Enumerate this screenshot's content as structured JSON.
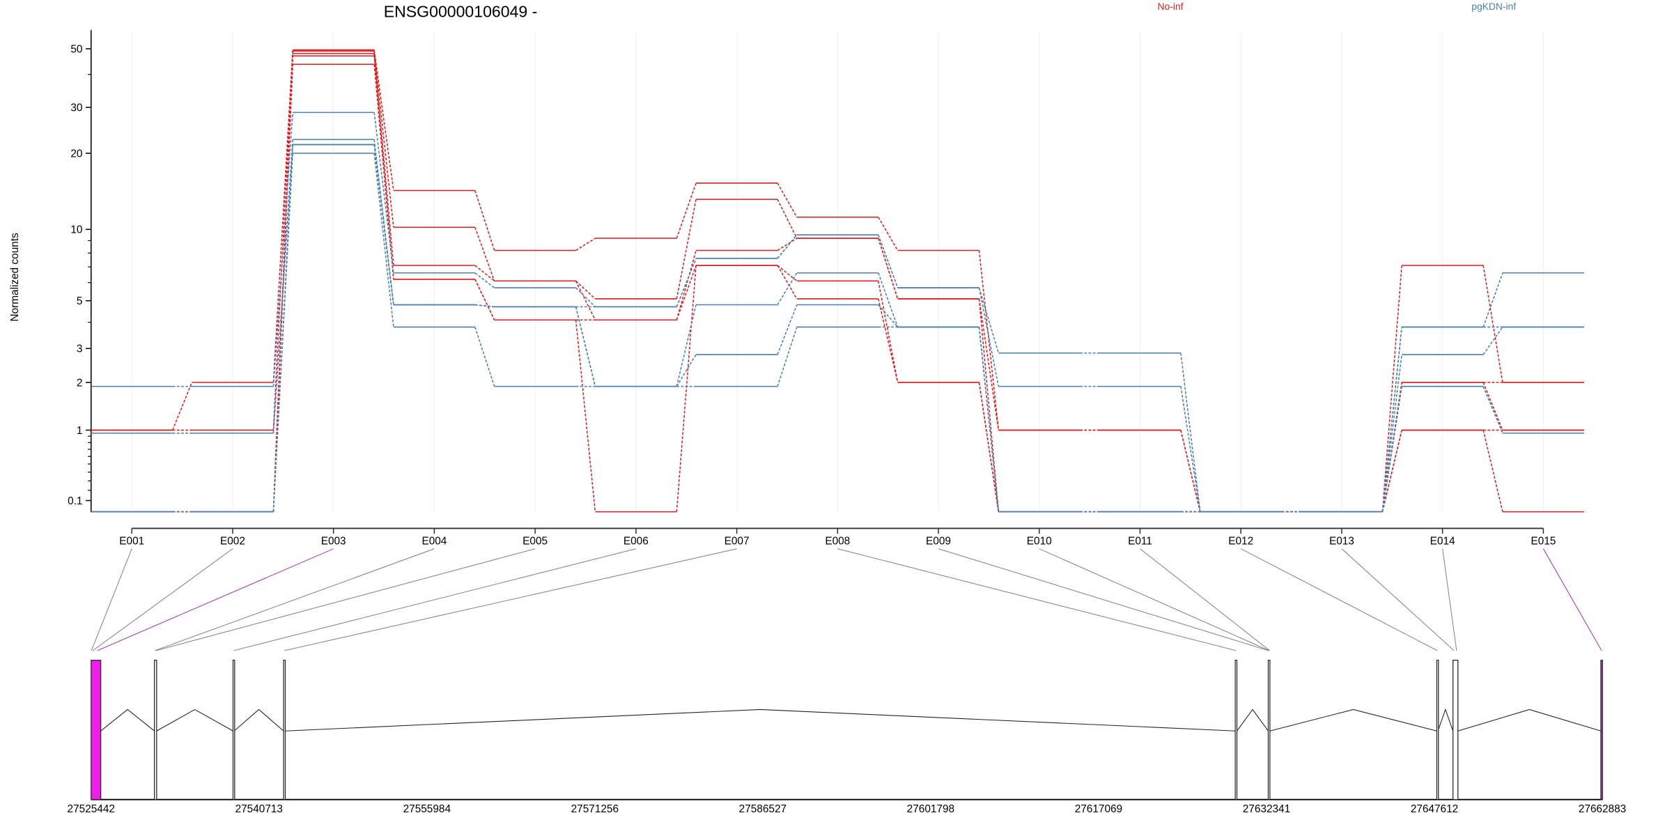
{
  "chart_data": {
    "type": "line",
    "title": "ENSG00000106049 -",
    "ylabel": "Normalized counts",
    "xlabel": "",
    "y_scale": "log10(count+1)",
    "ylim": [
      0,
      55
    ],
    "y_ticks": [
      0.1,
      1,
      2,
      3,
      5,
      10,
      20,
      30,
      50
    ],
    "y_tick_labels": [
      "0.1",
      "1",
      "2",
      "3",
      "5",
      "10",
      "20",
      "30",
      "50"
    ],
    "y_minor_ticks": [
      0.2,
      0.3,
      0.4,
      0.5,
      0.6,
      0.7,
      0.8,
      0.9,
      4,
      6,
      7,
      8,
      9,
      40
    ],
    "categories": [
      "E001",
      "E002",
      "E003",
      "E004",
      "E005",
      "E006",
      "E007",
      "E008",
      "E009",
      "E010",
      "E011",
      "E012",
      "E013",
      "E014",
      "E015"
    ],
    "grid": "vertical at exons",
    "legend": {
      "placement": "top",
      "entries": [
        {
          "name": "No-inf",
          "color": "#E41A1C"
        },
        {
          "name": "pgKDN-inf",
          "color": "#4A7FB5"
        }
      ]
    },
    "groups": [
      {
        "name": "No-inf",
        "color": "#E41A1C",
        "samples": [
          [
            1,
            2,
            49.5,
            14.3,
            8.2,
            9.2,
            15.3,
            11.2,
            8.2,
            1,
            1,
            0,
            0,
            7.1,
            2
          ],
          [
            1,
            1,
            49,
            10.2,
            6.1,
            5.1,
            13.2,
            9.2,
            5.1,
            1,
            1,
            0,
            0,
            2,
            2
          ],
          [
            0,
            0,
            48,
            7.1,
            6.1,
            4.1,
            8.2,
            9.2,
            5.1,
            0,
            0,
            0,
            0,
            2,
            1
          ],
          [
            0,
            0,
            47,
            6.2,
            4.1,
            4.1,
            7.1,
            6.1,
            2,
            0,
            0,
            0,
            0,
            1,
            1
          ],
          [
            0,
            0,
            43.7,
            6.2,
            4.1,
            0,
            7.1,
            5.1,
            2,
            0,
            0,
            0,
            0,
            1,
            0
          ]
        ]
      },
      {
        "name": "pgKDN-inf",
        "color": "#4A7FB5",
        "samples": [
          [
            1.9,
            1.9,
            28.7,
            6.6,
            5.7,
            4.7,
            7.6,
            9.5,
            5.7,
            2.85,
            2.85,
            0,
            0,
            3.8,
            6.6
          ],
          [
            0.95,
            0.95,
            22.6,
            4.8,
            4.7,
            4.7,
            7.6,
            9.5,
            5.7,
            1.9,
            1.9,
            0,
            0,
            3.8,
            3.8
          ],
          [
            0.95,
            0.95,
            21.6,
            4.8,
            4.7,
            1.9,
            4.8,
            6.6,
            3.8,
            0,
            0,
            0,
            0,
            2.8,
            3.8
          ],
          [
            0,
            0,
            21.6,
            4.8,
            4.7,
            1.9,
            2.8,
            4.8,
            3.8,
            0,
            0,
            0,
            0,
            1.9,
            0.95
          ],
          [
            0,
            0,
            20,
            3.8,
            1.9,
            1.9,
            1.9,
            3.8,
            3.8,
            0,
            0,
            0,
            0,
            1.9,
            0.95
          ]
        ]
      }
    ],
    "gene_model": {
      "range": [
        27525442,
        27662883
      ],
      "axis_ticks": [
        27525442,
        27540713,
        27555984,
        27571256,
        27586527,
        27601798,
        27617069,
        27632341,
        27647612,
        27662883
      ],
      "axis_tick_labels": [
        "27525442",
        "27540713",
        "27555984",
        "27571256",
        "27586527",
        "27601798",
        "27617069",
        "27632341",
        "27647612",
        "27662883"
      ],
      "exon_bins": [
        {
          "id": "E001",
          "start": 27525442,
          "end": 27525500,
          "highlight": false
        },
        {
          "id": "E002",
          "start": 27525500,
          "end": 27525700,
          "highlight": false
        },
        {
          "id": "E003",
          "start": 27525700,
          "end": 27526320,
          "highlight": true
        },
        {
          "id": "E004",
          "start": 27531200,
          "end": 27531300,
          "highlight": false
        },
        {
          "id": "E005",
          "start": 27531300,
          "end": 27531400,
          "highlight": false
        },
        {
          "id": "E006",
          "start": 27538350,
          "end": 27538450,
          "highlight": false
        },
        {
          "id": "E007",
          "start": 27542950,
          "end": 27543100,
          "highlight": false
        },
        {
          "id": "E008",
          "start": 27629500,
          "end": 27629650,
          "highlight": false
        },
        {
          "id": "E009",
          "start": 27632500,
          "end": 27632550,
          "highlight": false
        },
        {
          "id": "E010",
          "start": 27632550,
          "end": 27632600,
          "highlight": false
        },
        {
          "id": "E011",
          "start": 27632600,
          "end": 27632650,
          "highlight": false
        },
        {
          "id": "E012",
          "start": 27647830,
          "end": 27647930,
          "highlight": false
        },
        {
          "id": "E013",
          "start": 27649300,
          "end": 27649500,
          "highlight": false
        },
        {
          "id": "E014",
          "start": 27649500,
          "end": 27649750,
          "highlight": false
        },
        {
          "id": "E015",
          "start": 27662750,
          "end": 27662883,
          "highlight": true
        }
      ],
      "exons": [
        {
          "start": 27525442,
          "end": 27526320,
          "fill": "#EE1EE6"
        },
        {
          "start": 27531200,
          "end": 27531400,
          "fill": "#FFFFFF"
        },
        {
          "start": 27538350,
          "end": 27538450,
          "fill": "#FFFFFF"
        },
        {
          "start": 27542950,
          "end": 27543100,
          "fill": "#FFFFFF"
        },
        {
          "start": 27629500,
          "end": 27629650,
          "fill": "#FFFFFF"
        },
        {
          "start": 27632500,
          "end": 27632650,
          "fill": "#FFFFFF"
        },
        {
          "start": 27647830,
          "end": 27647930,
          "fill": "#FFFFFF"
        },
        {
          "start": 27649300,
          "end": 27649750,
          "fill": "#FFFFFF"
        },
        {
          "start": 27662750,
          "end": 27662883,
          "fill": "#C040C8"
        }
      ],
      "highlight_color": "#A040B0"
    }
  }
}
